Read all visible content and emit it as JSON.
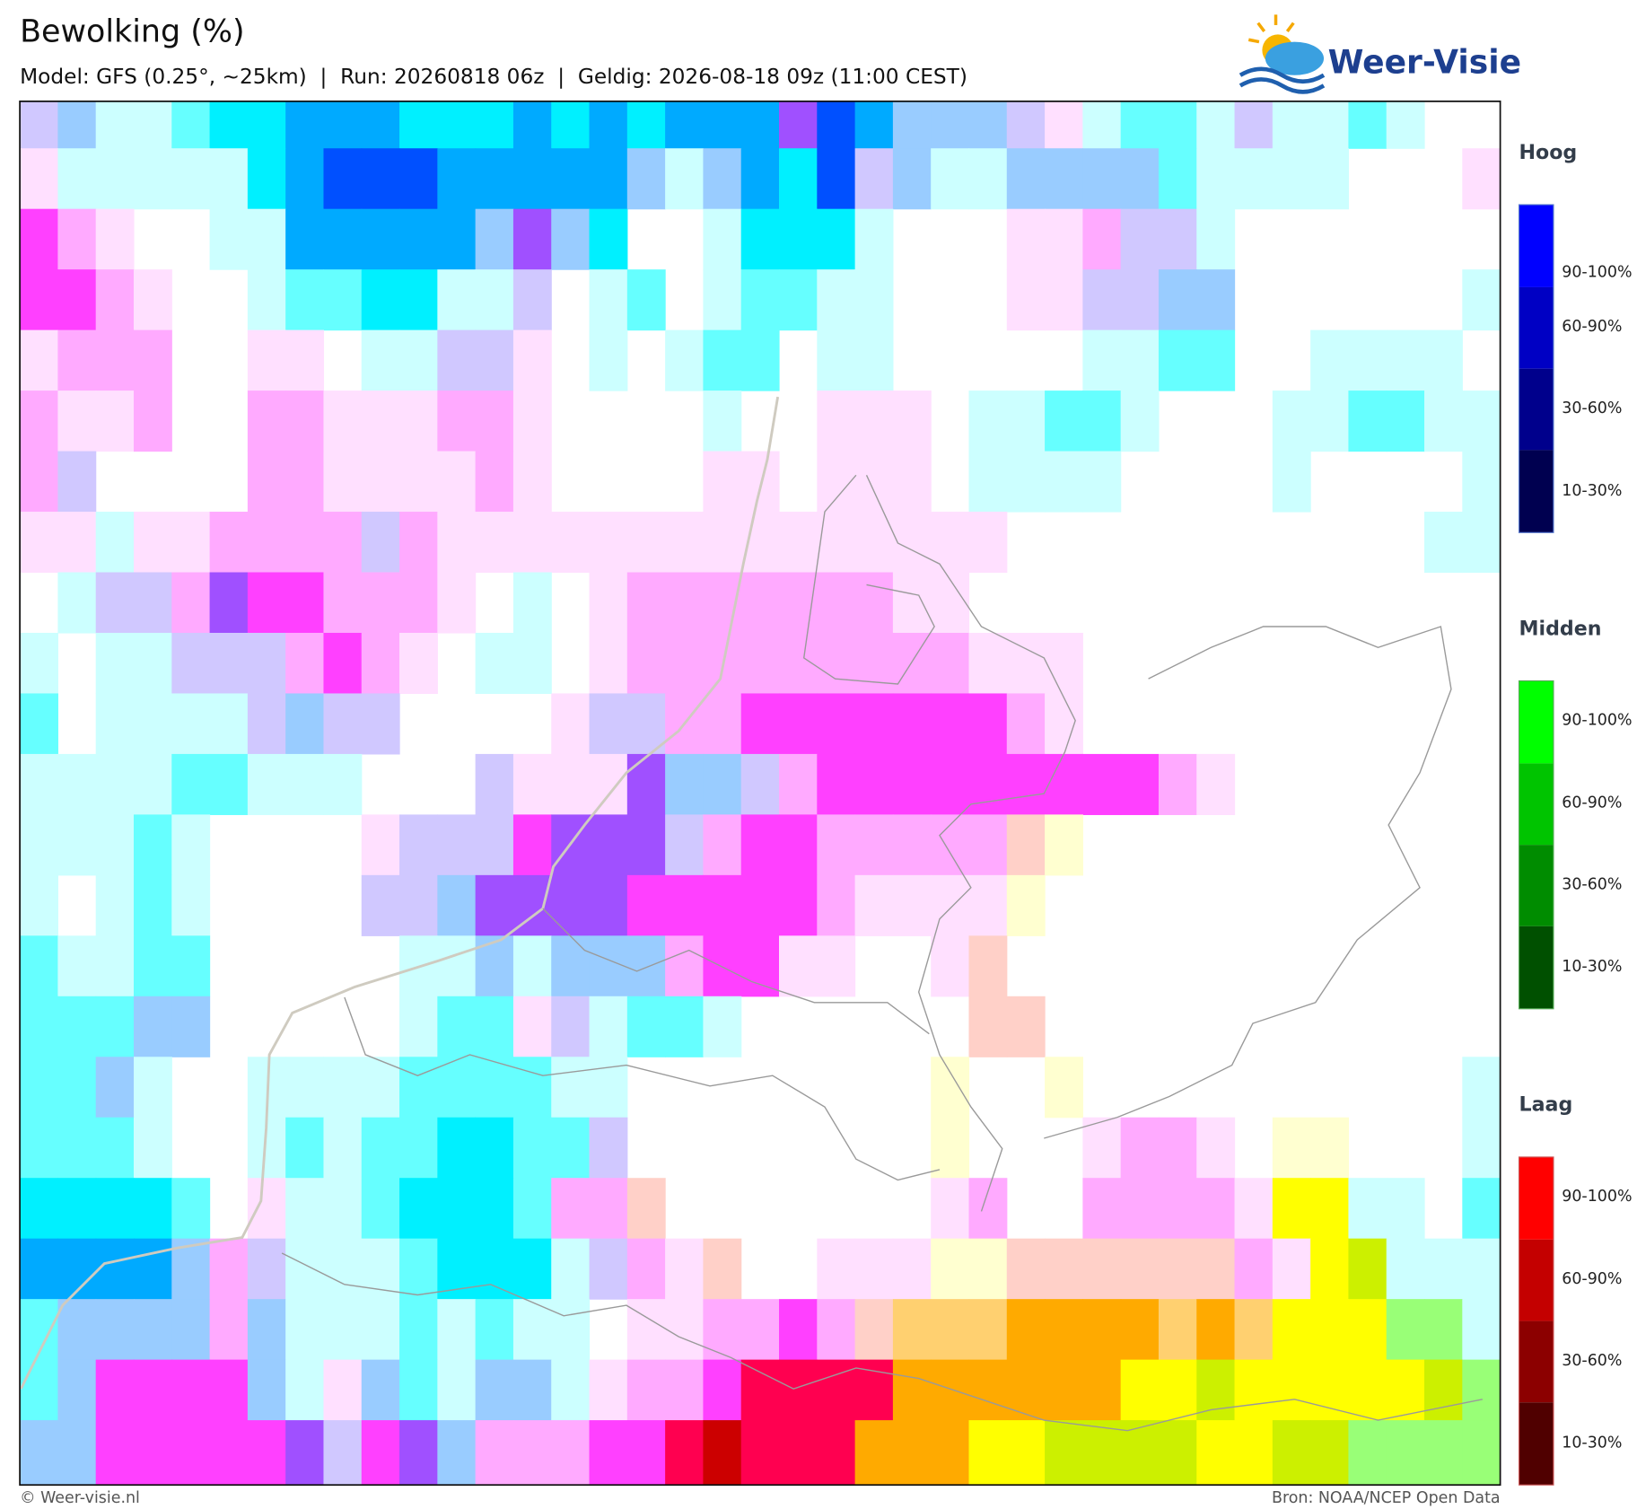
{
  "header": {
    "title": "Bewolking (%)",
    "subtitle": "Model: GFS (0.25°, ~25km)  |  Run: 20260818 06z  |  Geldig: 2026-08-18 09z (11:00 CEST)",
    "logo": "Weer-Visie"
  },
  "legend": [
    {
      "title": "Hoog",
      "labels": [
        "90-100%",
        "60-90%",
        "30-60%",
        "10-30%"
      ]
    },
    {
      "title": "Midden",
      "labels": [
        "90-100%",
        "60-90%",
        "30-60%",
        "10-30%"
      ]
    },
    {
      "title": "Laag",
      "labels": [
        "90-100%",
        "60-90%",
        "30-60%",
        "10-30%"
      ]
    }
  ],
  "footer": {
    "left": "© Weer-visie.nl",
    "right": "Bron: NOAA/NCEP Open Data"
  }
}
